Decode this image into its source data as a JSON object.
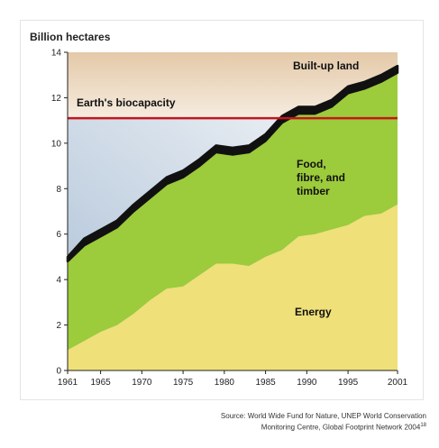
{
  "chart_data": {
    "type": "area",
    "stacked": true,
    "ylabel": "Billion hectares",
    "ylim": [
      0,
      14
    ],
    "yticks": [
      0,
      2,
      4,
      6,
      8,
      10,
      12,
      14
    ],
    "xlim": [
      1961,
      2001
    ],
    "xticks": [
      1961,
      1965,
      1970,
      1975,
      1980,
      1985,
      1990,
      1995,
      2001
    ],
    "x": [
      1961,
      1963,
      1965,
      1967,
      1969,
      1971,
      1973,
      1975,
      1977,
      1979,
      1981,
      1983,
      1985,
      1987,
      1989,
      1991,
      1993,
      1995,
      1997,
      1999,
      2001
    ],
    "series": [
      {
        "name": "Energy",
        "color": "#efe07a",
        "values": [
          0.9,
          1.3,
          1.7,
          2.0,
          2.5,
          3.1,
          3.6,
          3.7,
          4.2,
          4.7,
          4.7,
          4.6,
          5.0,
          5.3,
          5.9,
          6.0,
          6.2,
          6.4,
          6.8,
          6.9,
          7.3
        ]
      },
      {
        "name": "Food, fibre, and timber",
        "color": "#9ccb3b",
        "values": [
          3.9,
          4.2,
          4.2,
          4.3,
          4.5,
          4.5,
          4.6,
          4.8,
          4.8,
          4.9,
          4.8,
          5.0,
          5.1,
          5.6,
          5.4,
          5.3,
          5.4,
          5.8,
          5.6,
          5.8,
          5.8
        ]
      },
      {
        "name": "Built-up land",
        "color": "#111111",
        "values": [
          0.2,
          0.3,
          0.3,
          0.3,
          0.3,
          0.3,
          0.3,
          0.3,
          0.3,
          0.3,
          0.3,
          0.3,
          0.3,
          0.3,
          0.3,
          0.3,
          0.3,
          0.3,
          0.3,
          0.3,
          0.3
        ]
      }
    ],
    "biocapacity": {
      "label": "Earth's biocapacity",
      "value": 11.1,
      "color": "#c4161c"
    },
    "annotations": {
      "built_up": "Built-up land",
      "food_lines": [
        "Food,",
        "fibre, and",
        "timber"
      ],
      "energy": "Energy"
    },
    "background_colors": {
      "top": "#e8d2b6",
      "bottom_left": "#b8c9dc"
    },
    "grid": false
  },
  "source": {
    "line1": "Source: World Wide Fund for Nature, UNEP World Conservation",
    "line2": "Monitoring Centre, Global Footprint Network 2004",
    "note": "18"
  }
}
